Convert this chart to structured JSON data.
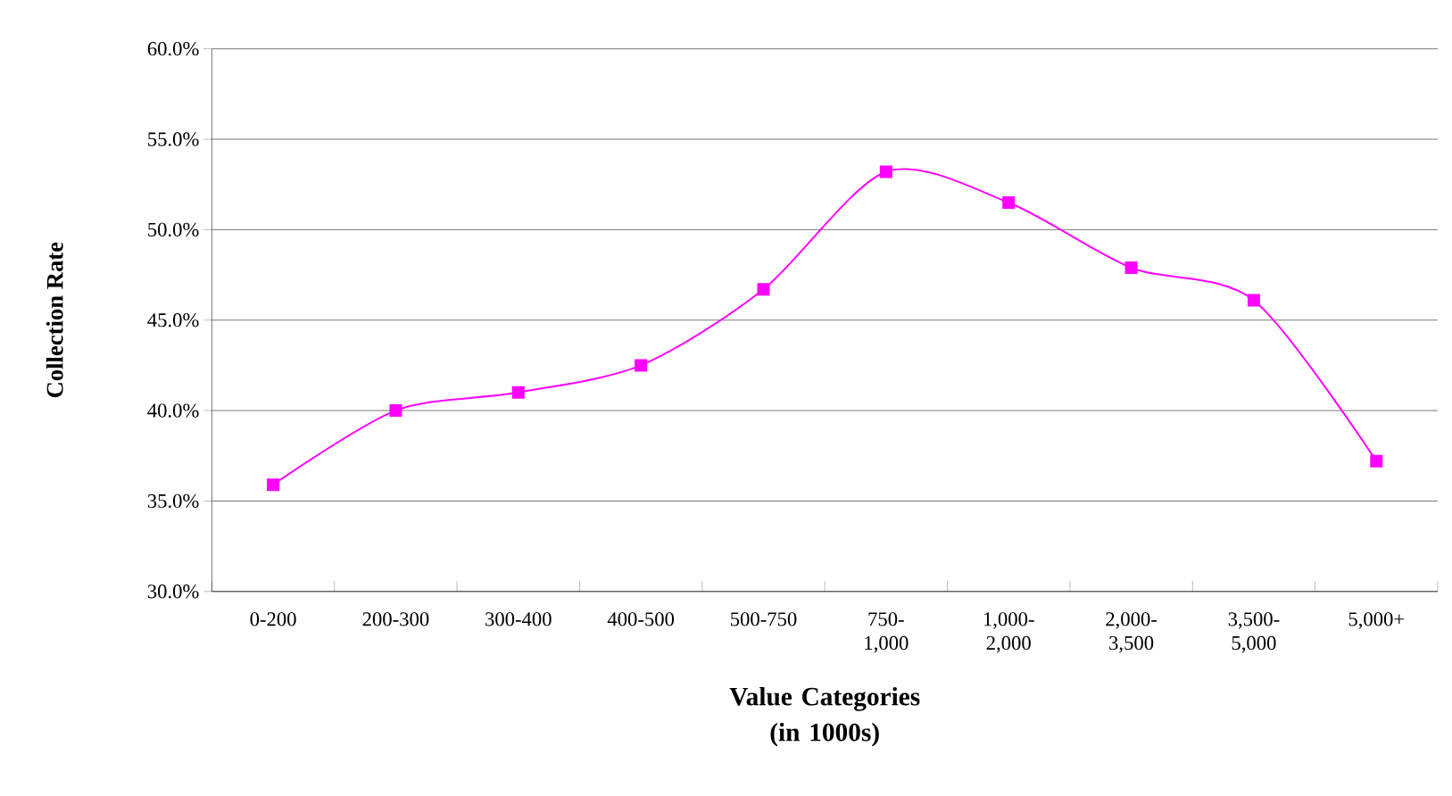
{
  "chart_data": {
    "type": "line",
    "xlabel": "Value Categories (in 1000s)",
    "ylabel": "Collection Rate",
    "categories": [
      "0-200",
      "200-300",
      "300-400",
      "400-500",
      "500-750",
      "750-1,000",
      "1,000-2,000",
      "2,000-3,500",
      "3,500-5,000",
      "5,000+"
    ],
    "values": [
      35.9,
      40.0,
      41.0,
      42.5,
      46.7,
      53.2,
      51.5,
      47.9,
      46.1,
      37.2
    ],
    "color": "#ff00ff",
    "marker": "square",
    "line_style": "solid",
    "grid": "y",
    "ylim": [
      30,
      60
    ],
    "yticks": [
      {
        "value": 30,
        "label": "30.0%"
      },
      {
        "value": 35,
        "label": "35.0%"
      },
      {
        "value": 40,
        "label": "40.0%"
      },
      {
        "value": 45,
        "label": "45.0%"
      },
      {
        "value": 50,
        "label": "50.0%"
      },
      {
        "value": 55,
        "label": "55.0%"
      },
      {
        "value": 60,
        "label": "60.0%"
      }
    ]
  }
}
